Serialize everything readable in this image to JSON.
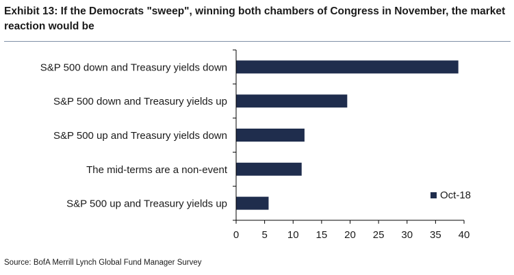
{
  "title": "Exhibit 13: If the Democrats \"sweep\", winning both chambers of Congress in November, the market reaction would be",
  "source": "Source: BofA Merrill Lynch Global Fund Manager Survey",
  "colors": {
    "bar": "#1f2d4d",
    "axis": "#000000",
    "rule": "#7f8fa6"
  },
  "chart_data": {
    "type": "bar",
    "orientation": "horizontal",
    "title": "Exhibit 13: If the Democrats \"sweep\", winning both chambers of Congress in November, the market reaction would be",
    "categories": [
      "S&P 500 down and Treasury yields down",
      "S&P 500 down and Treasury yields up",
      "S&P 500 up and Treasury yields down",
      "The mid-terms are a non-event",
      "S&P 500 up and Treasury yields up"
    ],
    "series": [
      {
        "name": "Oct-18",
        "values": [
          39,
          19.5,
          12,
          11.5,
          5.7
        ]
      }
    ],
    "xlim": [
      0,
      40
    ],
    "xticks": [
      0,
      5,
      10,
      15,
      20,
      25,
      30,
      35,
      40
    ],
    "xlabel": "",
    "ylabel": "",
    "grid": false,
    "legend": "bottom-right"
  }
}
